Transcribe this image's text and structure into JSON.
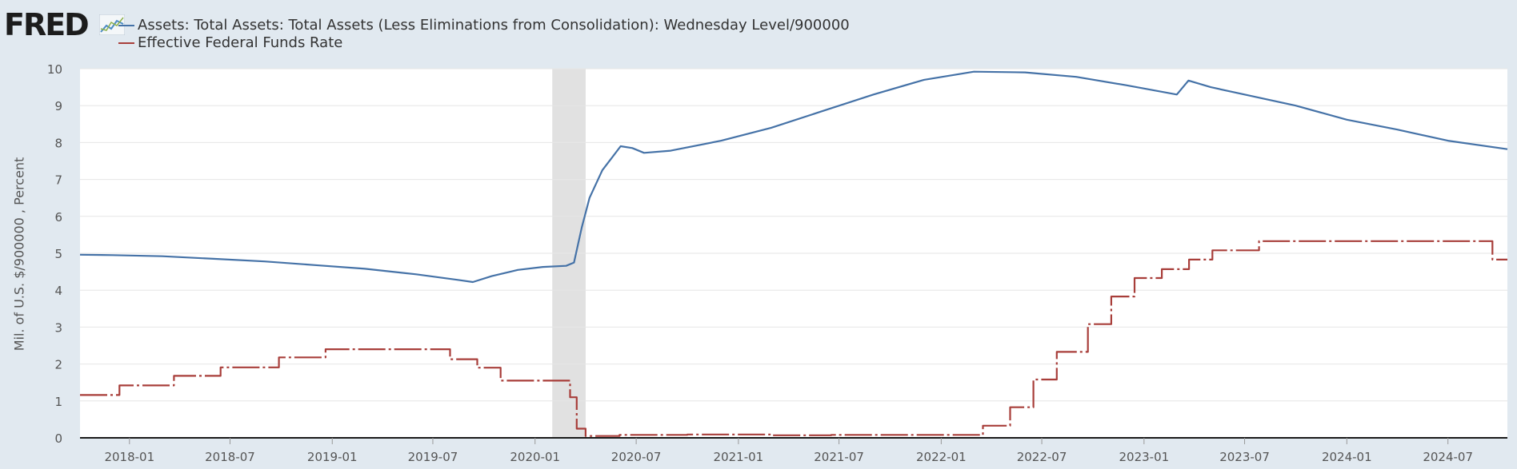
{
  "brand": {
    "logo_text": "FRED",
    "logo_icon": "fred-line-chart-icon"
  },
  "chart_data": {
    "type": "line",
    "xlabel": "",
    "ylabel": "Mil. of U.S. $/900000 , Percent",
    "ylim": [
      0,
      10
    ],
    "y_ticks": [
      "0",
      "1",
      "2",
      "3",
      "4",
      "5",
      "6",
      "7",
      "8",
      "9",
      "10"
    ],
    "x_range": [
      "2017-10-04",
      "2024-10-16"
    ],
    "x_ticks": [
      "2018-01",
      "2018-07",
      "2019-01",
      "2019-07",
      "2020-01",
      "2020-07",
      "2021-01",
      "2021-07",
      "2022-01",
      "2022-07",
      "2023-01",
      "2023-07",
      "2024-01",
      "2024-07"
    ],
    "grid": "horizontal",
    "legend_position": "top-left",
    "recession_shading": [
      [
        "2020-02",
        "2020-04"
      ]
    ],
    "series": [
      {
        "name": "Assets: Total Assets: Total Assets (Less Eliminations from Consolidation): Wednesday Level/900000",
        "color": "#4572a7",
        "style": "solid",
        "points": [
          [
            "2017-10-04",
            4.96
          ],
          [
            "2017-12-01",
            4.95
          ],
          [
            "2018-03-01",
            4.92
          ],
          [
            "2018-06-01",
            4.85
          ],
          [
            "2018-09-01",
            4.78
          ],
          [
            "2018-12-01",
            4.68
          ],
          [
            "2019-03-01",
            4.58
          ],
          [
            "2019-06-01",
            4.43
          ],
          [
            "2019-08-15",
            4.28
          ],
          [
            "2019-09-11",
            4.22
          ],
          [
            "2019-10-15",
            4.38
          ],
          [
            "2019-12-01",
            4.55
          ],
          [
            "2020-01-15",
            4.63
          ],
          [
            "2020-02-26",
            4.66
          ],
          [
            "2020-03-11",
            4.75
          ],
          [
            "2020-03-25",
            5.7
          ],
          [
            "2020-04-08",
            6.5
          ],
          [
            "2020-05-01",
            7.25
          ],
          [
            "2020-06-03",
            7.9
          ],
          [
            "2020-06-24",
            7.85
          ],
          [
            "2020-07-15",
            7.72
          ],
          [
            "2020-09-01",
            7.78
          ],
          [
            "2020-12-01",
            8.05
          ],
          [
            "2021-03-01",
            8.4
          ],
          [
            "2021-06-01",
            8.85
          ],
          [
            "2021-09-01",
            9.3
          ],
          [
            "2021-12-01",
            9.7
          ],
          [
            "2022-03-01",
            9.92
          ],
          [
            "2022-06-01",
            9.9
          ],
          [
            "2022-09-01",
            9.78
          ],
          [
            "2022-12-01",
            9.55
          ],
          [
            "2023-03-01",
            9.3
          ],
          [
            "2023-03-22",
            9.68
          ],
          [
            "2023-05-01",
            9.5
          ],
          [
            "2023-07-01",
            9.3
          ],
          [
            "2023-10-01",
            9.0
          ],
          [
            "2024-01-01",
            8.62
          ],
          [
            "2024-04-01",
            8.35
          ],
          [
            "2024-07-01",
            8.05
          ],
          [
            "2024-10-16",
            7.82
          ]
        ]
      },
      {
        "name": "Effective Federal Funds Rate",
        "color": "#a83e3a",
        "style": "step",
        "points": [
          [
            "2017-10-04",
            1.16
          ],
          [
            "2017-12-14",
            1.42
          ],
          [
            "2018-03-22",
            1.68
          ],
          [
            "2018-06-14",
            1.91
          ],
          [
            "2018-09-27",
            2.18
          ],
          [
            "2018-12-20",
            2.4
          ],
          [
            "2019-08-01",
            2.13
          ],
          [
            "2019-09-19",
            1.9
          ],
          [
            "2019-10-31",
            1.55
          ],
          [
            "2020-03-04",
            1.1
          ],
          [
            "2020-03-16",
            0.25
          ],
          [
            "2020-04-01",
            0.05
          ],
          [
            "2020-06-01",
            0.08
          ],
          [
            "2020-10-01",
            0.09
          ],
          [
            "2021-03-01",
            0.07
          ],
          [
            "2021-06-17",
            0.08
          ],
          [
            "2022-03-17",
            0.33
          ],
          [
            "2022-05-05",
            0.83
          ],
          [
            "2022-06-16",
            1.58
          ],
          [
            "2022-07-28",
            2.33
          ],
          [
            "2022-09-22",
            3.08
          ],
          [
            "2022-11-03",
            3.83
          ],
          [
            "2022-12-15",
            4.33
          ],
          [
            "2023-02-02",
            4.57
          ],
          [
            "2023-03-23",
            4.83
          ],
          [
            "2023-05-04",
            5.08
          ],
          [
            "2023-07-27",
            5.33
          ],
          [
            "2024-09-19",
            4.83
          ],
          [
            "2024-10-16",
            4.83
          ]
        ]
      }
    ]
  }
}
